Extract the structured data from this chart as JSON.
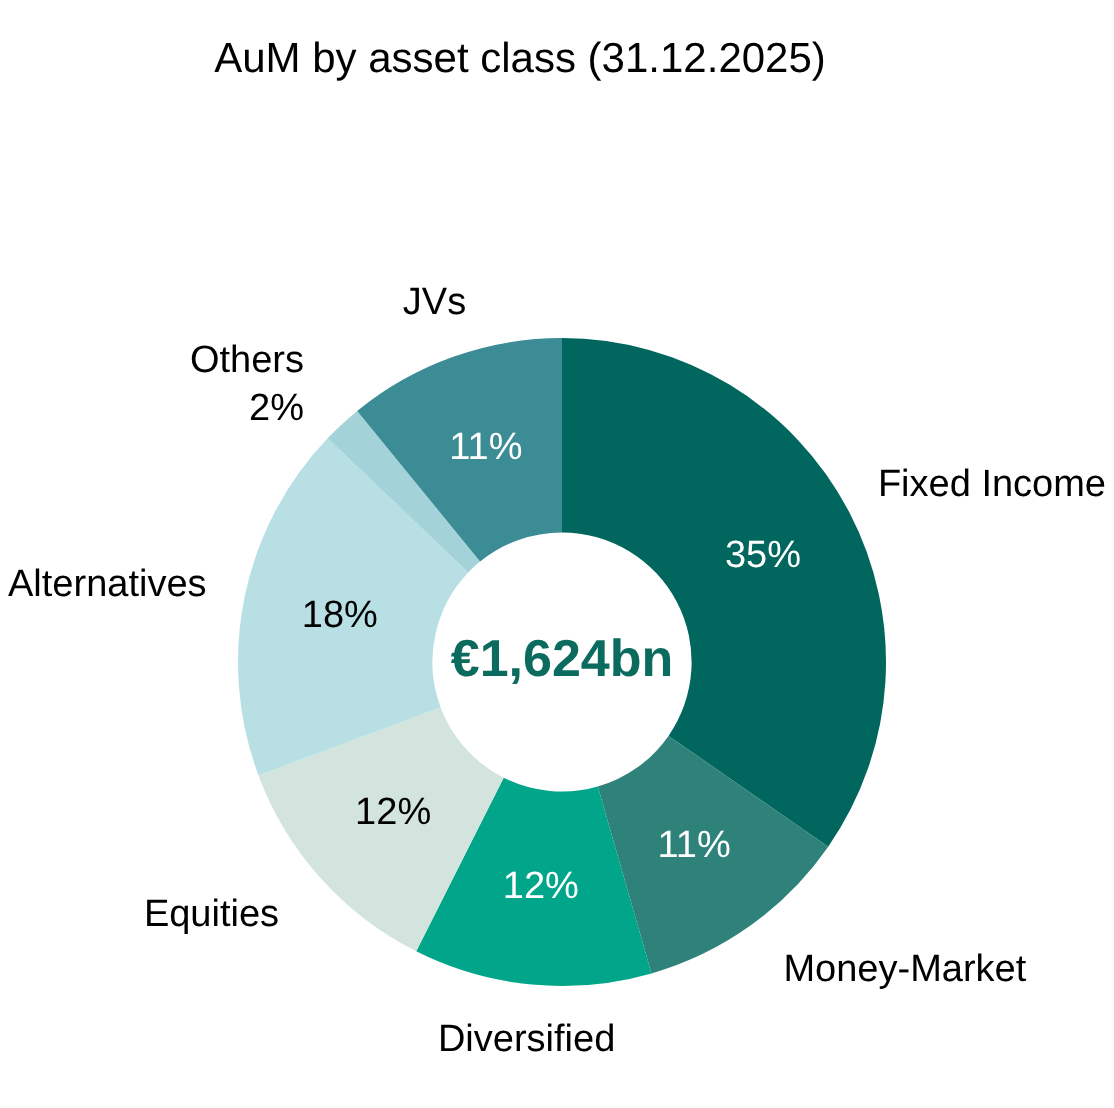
{
  "chart_data": {
    "type": "donut",
    "title": "AuM by asset class (31.12.2025)",
    "categories": [
      "Fixed Income",
      "Money-Market",
      "Diversified",
      "Equities",
      "Alternatives",
      "Others",
      "JVs"
    ],
    "values": [
      35,
      11,
      12,
      12,
      18,
      2,
      11
    ],
    "value_labels": [
      "35%",
      "11%",
      "12%",
      "12%",
      "18%",
      "2%",
      "11%"
    ],
    "colors": [
      "#00665e",
      "#2e8279",
      "#00a58a",
      "#d3e3dd",
      "#b8e0e4",
      "#a3d3d9",
      "#3b8c95"
    ],
    "annotations": [
      "€1,624bn"
    ]
  }
}
